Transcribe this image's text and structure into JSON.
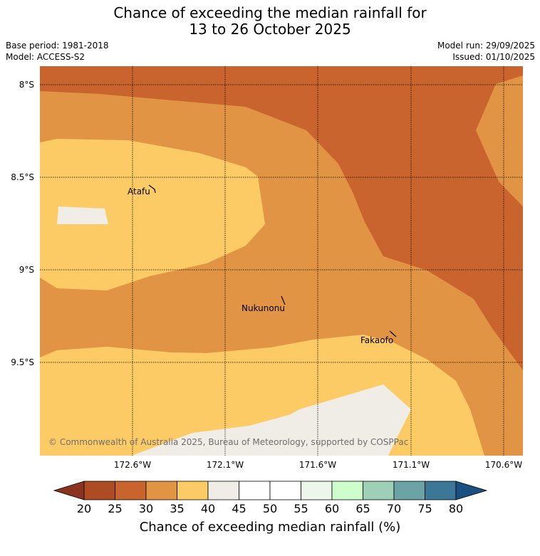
{
  "title_line1": "Chance of exceeding the median rainfall for",
  "title_line2": "13 to 26 October 2025",
  "base_period": "Base period: 1981-2018",
  "model": "Model: ACCESS-S2",
  "model_run": "Model run: 29/09/2025",
  "issued": "Issued: 01/10/2025",
  "lon_labels": [
    "172.6°W",
    "172.1°W",
    "171.6°W",
    "171.1°W",
    "170.6°W"
  ],
  "lat_labels": [
    "8°S",
    "8.5°S",
    "9°S",
    "9.5°S"
  ],
  "places": {
    "atafu": "Atafu",
    "nukunonu": "Nukunonu",
    "fakaofo": "Fakaofo"
  },
  "copyright": "© Commonwealth of Australia 2025, Bureau of Meteorology, supported by COSPPac",
  "colorbar": {
    "label": "Chance of exceeding median rainfall (%)",
    "ticks": [
      "20",
      "25",
      "30",
      "35",
      "40",
      "45",
      "50",
      "55",
      "60",
      "65",
      "70",
      "75",
      "80"
    ],
    "colors": [
      "#ad4b23",
      "#c9642f",
      "#e19444",
      "#fdcb66",
      "#f0ece6",
      "#ffffff",
      "#ffffff",
      "#ecf6ea",
      "#ccffcc",
      "#9ed0b7",
      "#6ca3a5",
      "#3c7797"
    ],
    "under_color": "#8a3420",
    "over_color": "#1a5080"
  },
  "map_colors": {
    "c25_30": "#c9642f",
    "c30_35": "#e19444",
    "c35_40": "#fdcb66",
    "c40_45": "#f0ece6"
  }
}
